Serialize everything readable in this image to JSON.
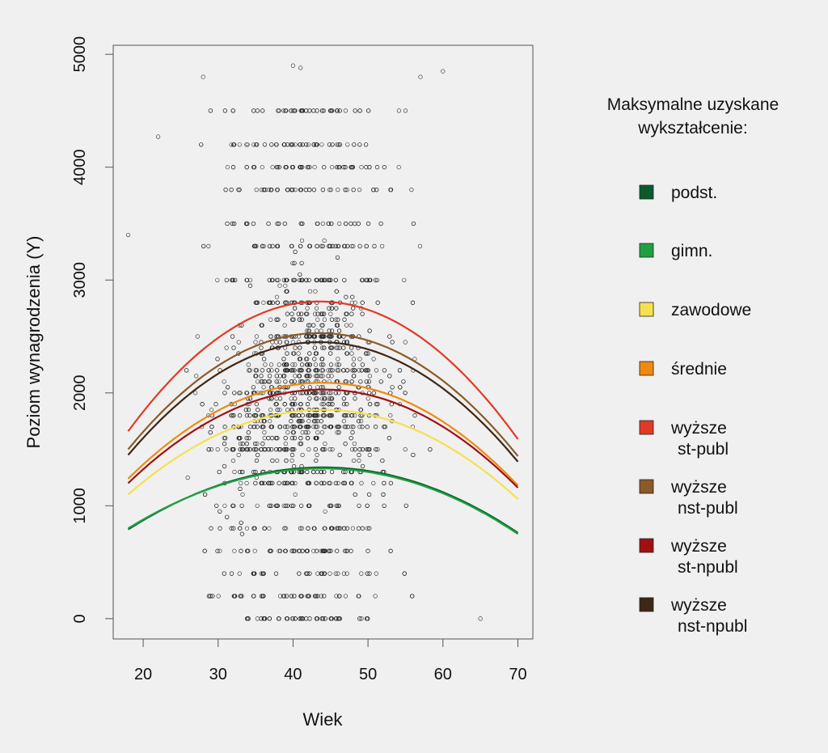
{
  "chart_data": {
    "type": "scatter",
    "xlabel": "Wiek",
    "ylabel": "Poziom wynagrodzenia (Y)",
    "xlim": [
      16,
      72
    ],
    "ylim": [
      -180,
      5080
    ],
    "x_ticks": [
      "20",
      "30",
      "40",
      "50",
      "60",
      "70"
    ],
    "y_ticks": [
      "0",
      "1000",
      "2000",
      "3000",
      "4000",
      "5000"
    ],
    "grid": false,
    "legend": {
      "title": "Maksymalne uzyskane\nwykształcenie:",
      "placement": "right"
    },
    "scatter": {
      "description": "scatter cloud of individual observations (Wiek vs. Y)",
      "marker": "open circle",
      "x_range": [
        17,
        66
      ],
      "y_values_common": [
        0,
        200,
        400,
        600,
        800,
        1000,
        1200,
        1300,
        1500,
        1700,
        1800,
        2000,
        2200,
        2500,
        2800,
        3000,
        3300,
        3500,
        3800,
        4000,
        4200,
        4500
      ],
      "notable_points": [
        {
          "x": 18,
          "y": 3400
        },
        {
          "x": 22,
          "y": 4270
        },
        {
          "x": 28,
          "y": 4800
        },
        {
          "x": 40,
          "y": 4900
        },
        {
          "x": 41,
          "y": 4880
        },
        {
          "x": 57,
          "y": 4800
        },
        {
          "x": 60,
          "y": 4850
        },
        {
          "x": 65,
          "y": 0
        }
      ]
    },
    "series": [
      {
        "name": "podst.",
        "color": "#0b5a2c",
        "peak_x": 44,
        "peak_y": 1340,
        "at_18": 790,
        "at_70": 760
      },
      {
        "name": "gimn.",
        "color": "#1fa040",
        "peak_x": 44,
        "peak_y": 1330,
        "at_18": 800,
        "at_70": 750
      },
      {
        "name": "zawodowe",
        "color": "#f5e050",
        "peak_x": 44,
        "peak_y": 1850,
        "at_18": 1100,
        "at_70": 1060
      },
      {
        "name": "średnie",
        "color": "#ee8a10",
        "peak_x": 44,
        "peak_y": 2090,
        "at_18": 1240,
        "at_70": 1180
      },
      {
        "name": "wyższe\nst-publ",
        "color": "#e03a24",
        "peak_x": 43.5,
        "peak_y": 2810,
        "at_18": 1660,
        "at_70": 1590
      },
      {
        "name": "wyższe\nnst-publ",
        "color": "#8a5a28",
        "peak_x": 43.5,
        "peak_y": 2530,
        "at_18": 1500,
        "at_70": 1440
      },
      {
        "name": "wyższe\nst-npubl",
        "color": "#a01010",
        "peak_x": 44,
        "peak_y": 2030,
        "at_18": 1200,
        "at_70": 1160
      },
      {
        "name": "wyższe\nnst-npubl",
        "color": "#3e2618",
        "peak_x": 43.5,
        "peak_y": 2450,
        "at_18": 1450,
        "at_70": 1390
      }
    ]
  }
}
